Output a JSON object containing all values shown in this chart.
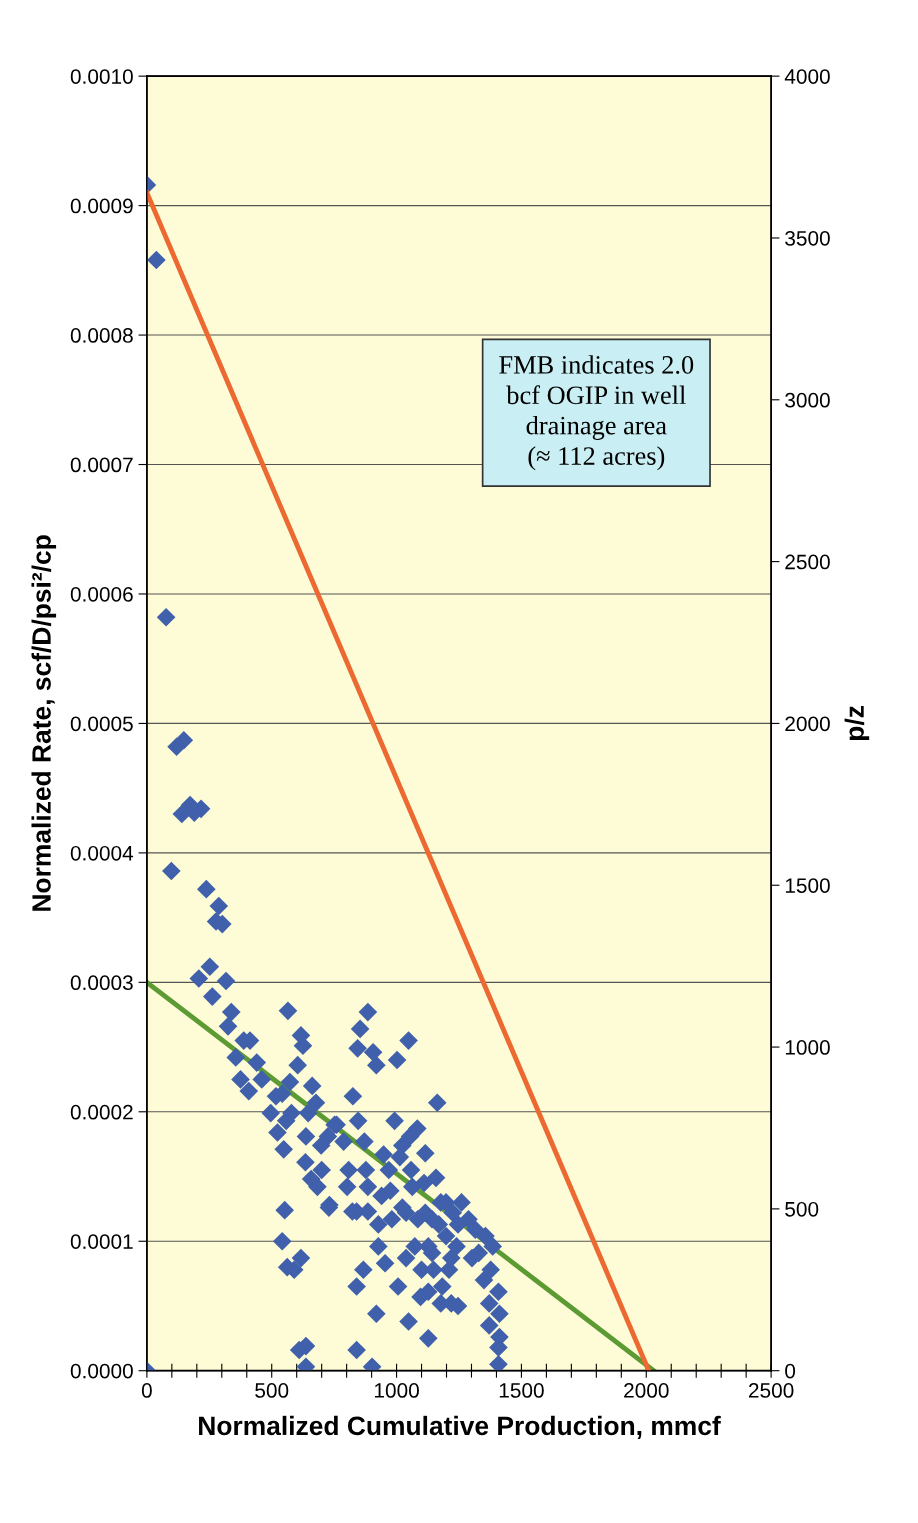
{
  "chart_data": {
    "type": "scatter",
    "xlabel": "Normalized Cumulative Production, mmcf",
    "ylabel": "Normalized Rate, scf/D/psi²/cp",
    "y2label": "p/z",
    "annotations": [
      "FMB indicates 2.0\nbcf OGIP in well\ndrainage area\n(≈ 112 acres)"
    ],
    "xlim": [
      0,
      2500
    ],
    "xticks": [
      0,
      {
        "value": 100,
        "label": null
      },
      {
        "value": 200,
        "label": null
      },
      {
        "value": 300,
        "label": null
      },
      {
        "value": 400,
        "label": null
      },
      500,
      {
        "value": 600,
        "label": null
      },
      {
        "value": 700,
        "label": null
      },
      {
        "value": 800,
        "label": null
      },
      {
        "value": 900,
        "label": null
      },
      1000,
      {
        "value": 1100,
        "label": null
      },
      {
        "value": 1200,
        "label": null
      },
      {
        "value": 1300,
        "label": null
      },
      {
        "value": 1400,
        "label": null
      },
      1500,
      {
        "value": 1600,
        "label": null
      },
      {
        "value": 1700,
        "label": null
      },
      {
        "value": 1800,
        "label": null
      },
      {
        "value": 1900,
        "label": null
      },
      2000,
      {
        "value": 2100,
        "label": null
      },
      {
        "value": 2200,
        "label": null
      },
      {
        "value": 2300,
        "label": null
      },
      {
        "value": 2400,
        "label": null
      },
      2500
    ],
    "ylim": [
      0,
      0.001
    ],
    "yticks": [
      {
        "value": 0,
        "label": "0.0000"
      },
      {
        "value": 0.0001,
        "label": "0.0001"
      },
      {
        "value": 0.0002,
        "label": "0.0002"
      },
      {
        "value": 0.0003,
        "label": "0.0003"
      },
      {
        "value": 0.0004,
        "label": "0.0004"
      },
      {
        "value": 0.0005,
        "label": "0.0005"
      },
      {
        "value": 0.0006,
        "label": "0.0006"
      },
      {
        "value": 0.0007,
        "label": "0.0007"
      },
      {
        "value": 0.0008,
        "label": "0.0008"
      },
      {
        "value": 0.0009,
        "label": "0.0009"
      },
      {
        "value": 0.001,
        "label": "0.0010"
      }
    ],
    "y2lim": [
      0,
      4000
    ],
    "y2ticks": [
      0,
      500,
      1000,
      1500,
      2000,
      2500,
      3000,
      3500,
      4000
    ],
    "grid": "y",
    "series": [
      {
        "color": "#4060ac",
        "marker": "diamond",
        "x": [
          0,
          38,
          77,
          148,
          119,
          217,
          190,
          173,
          140,
          98,
          238,
          288,
          302,
          277,
          252,
          208,
          317,
          262,
          338,
          325,
          565,
          0,
          752,
          725,
          698,
          731,
          700,
          683,
          658,
          635,
          637,
          662,
          677,
          646,
          637,
          637,
          610,
          617,
          590,
          562,
          542,
          552,
          548,
          558,
          523,
          496,
          517,
          542,
          579,
          604,
          617,
          625,
          573,
          460,
          440,
          408,
          413,
          388,
          356,
          375,
          1408,
          1408,
          1412,
          1412,
          1408,
          1385,
          1377,
          1371,
          1371,
          1356,
          1350,
          1329,
          1315,
          1302,
          1288,
          1260,
          1246,
          1240,
          1225,
          1219,
          1246,
          1219,
          1198,
          1198,
          1210,
          1163,
          1158,
          1177,
          1169,
          1183,
          1177,
          1142,
          1142,
          1148,
          1127,
          1115,
          1110,
          1115,
          1127,
          1127,
          1100,
          1096,
          1083,
          1085,
          1073,
          1048,
          1054,
          1058,
          1063,
          1038,
          1038,
          1048,
          1002,
          992,
          1023,
          1013,
          1023,
          1006,
          969,
          975,
          981,
          948,
          940,
          927,
          927,
          954,
          919,
          902,
          885,
          906,
          919,
          854,
          844,
          825,
          846,
          871,
          877,
          885,
          885,
          840,
          823,
          867,
          840,
          840,
          788,
          808,
          802,
          760,
          729
        ],
        "values": [
          0.000916,
          0.000858,
          0.000582,
          0.000487,
          0.000482,
          0.000434,
          0.000431,
          0.000437,
          0.00043,
          0.000386,
          0.000372,
          0.000359,
          0.000345,
          0.000347,
          0.000312,
          0.000303,
          0.000301,
          0.000289,
          0.000277,
          0.000266,
          0.000278,
          0.0,
          0.00019,
          0.000181,
          0.000174,
          0.000128,
          0.000155,
          0.000142,
          0.000148,
          0.000161,
          0.000181,
          0.00022,
          0.000207,
          0.000199,
          1.9e-05,
          3e-06,
          1.6e-05,
          8.7e-05,
          7.8e-05,
          8e-05,
          0.0001,
          0.000124,
          0.000171,
          0.000193,
          0.000184,
          0.000199,
          0.000212,
          0.000214,
          0.000199,
          0.000236,
          0.000259,
          0.000251,
          0.000223,
          0.000225,
          0.000238,
          0.000216,
          0.000255,
          0.000255,
          0.000242,
          0.000225,
          5e-06,
          6.1e-05,
          4.4e-05,
          2.6e-05,
          1.8e-05,
          9.6e-05,
          7.8e-05,
          5.2e-05,
          3.5e-05,
          0.000104,
          7e-05,
          9.1e-05,
          0.000109,
          8.7e-05,
          0.000117,
          0.00013,
          0.000113,
          9.6e-05,
          0.000122,
          8.7e-05,
          5e-05,
          5.2e-05,
          0.00013,
          0.000104,
          7.8e-05,
          0.000207,
          0.000149,
          0.00013,
          0.000113,
          6.5e-05,
          5.2e-05,
          0.000117,
          9.1e-05,
          7.8e-05,
          2.5e-05,
          0.000168,
          0.000145,
          0.000122,
          9.6e-05,
          6.1e-05,
          7.8e-05,
          5.7e-05,
          0.000187,
          0.000117,
          9.6e-05,
          0.000255,
          0.000181,
          0.000155,
          0.000142,
          0.000122,
          8.7e-05,
          3.8e-05,
          0.00024,
          0.000193,
          0.000174,
          0.000165,
          0.000126,
          6.5e-05,
          0.000155,
          0.000139,
          0.000117,
          0.000167,
          0.000135,
          0.000113,
          9.6e-05,
          8.3e-05,
          4.4e-05,
          3e-06,
          0.000277,
          0.000246,
          0.000236,
          0.000264,
          0.000249,
          0.000212,
          0.000193,
          0.000177,
          0.000155,
          0.000142,
          0.000123,
          0.000123,
          0.000123,
          7.8e-05,
          6.5e-05,
          1.6e-05,
          0.000177,
          0.000155,
          0.000142,
          0.00019,
          0.000126
        ]
      },
      {
        "type": "line",
        "color": "#5c9a34",
        "x": [
          0,
          2030
        ],
        "values": [
          0.0003,
          0
        ]
      },
      {
        "type": "line",
        "color": "#ec6a32",
        "axis": "y2",
        "x": [
          0,
          2010
        ],
        "values": [
          3640,
          0
        ]
      }
    ]
  }
}
